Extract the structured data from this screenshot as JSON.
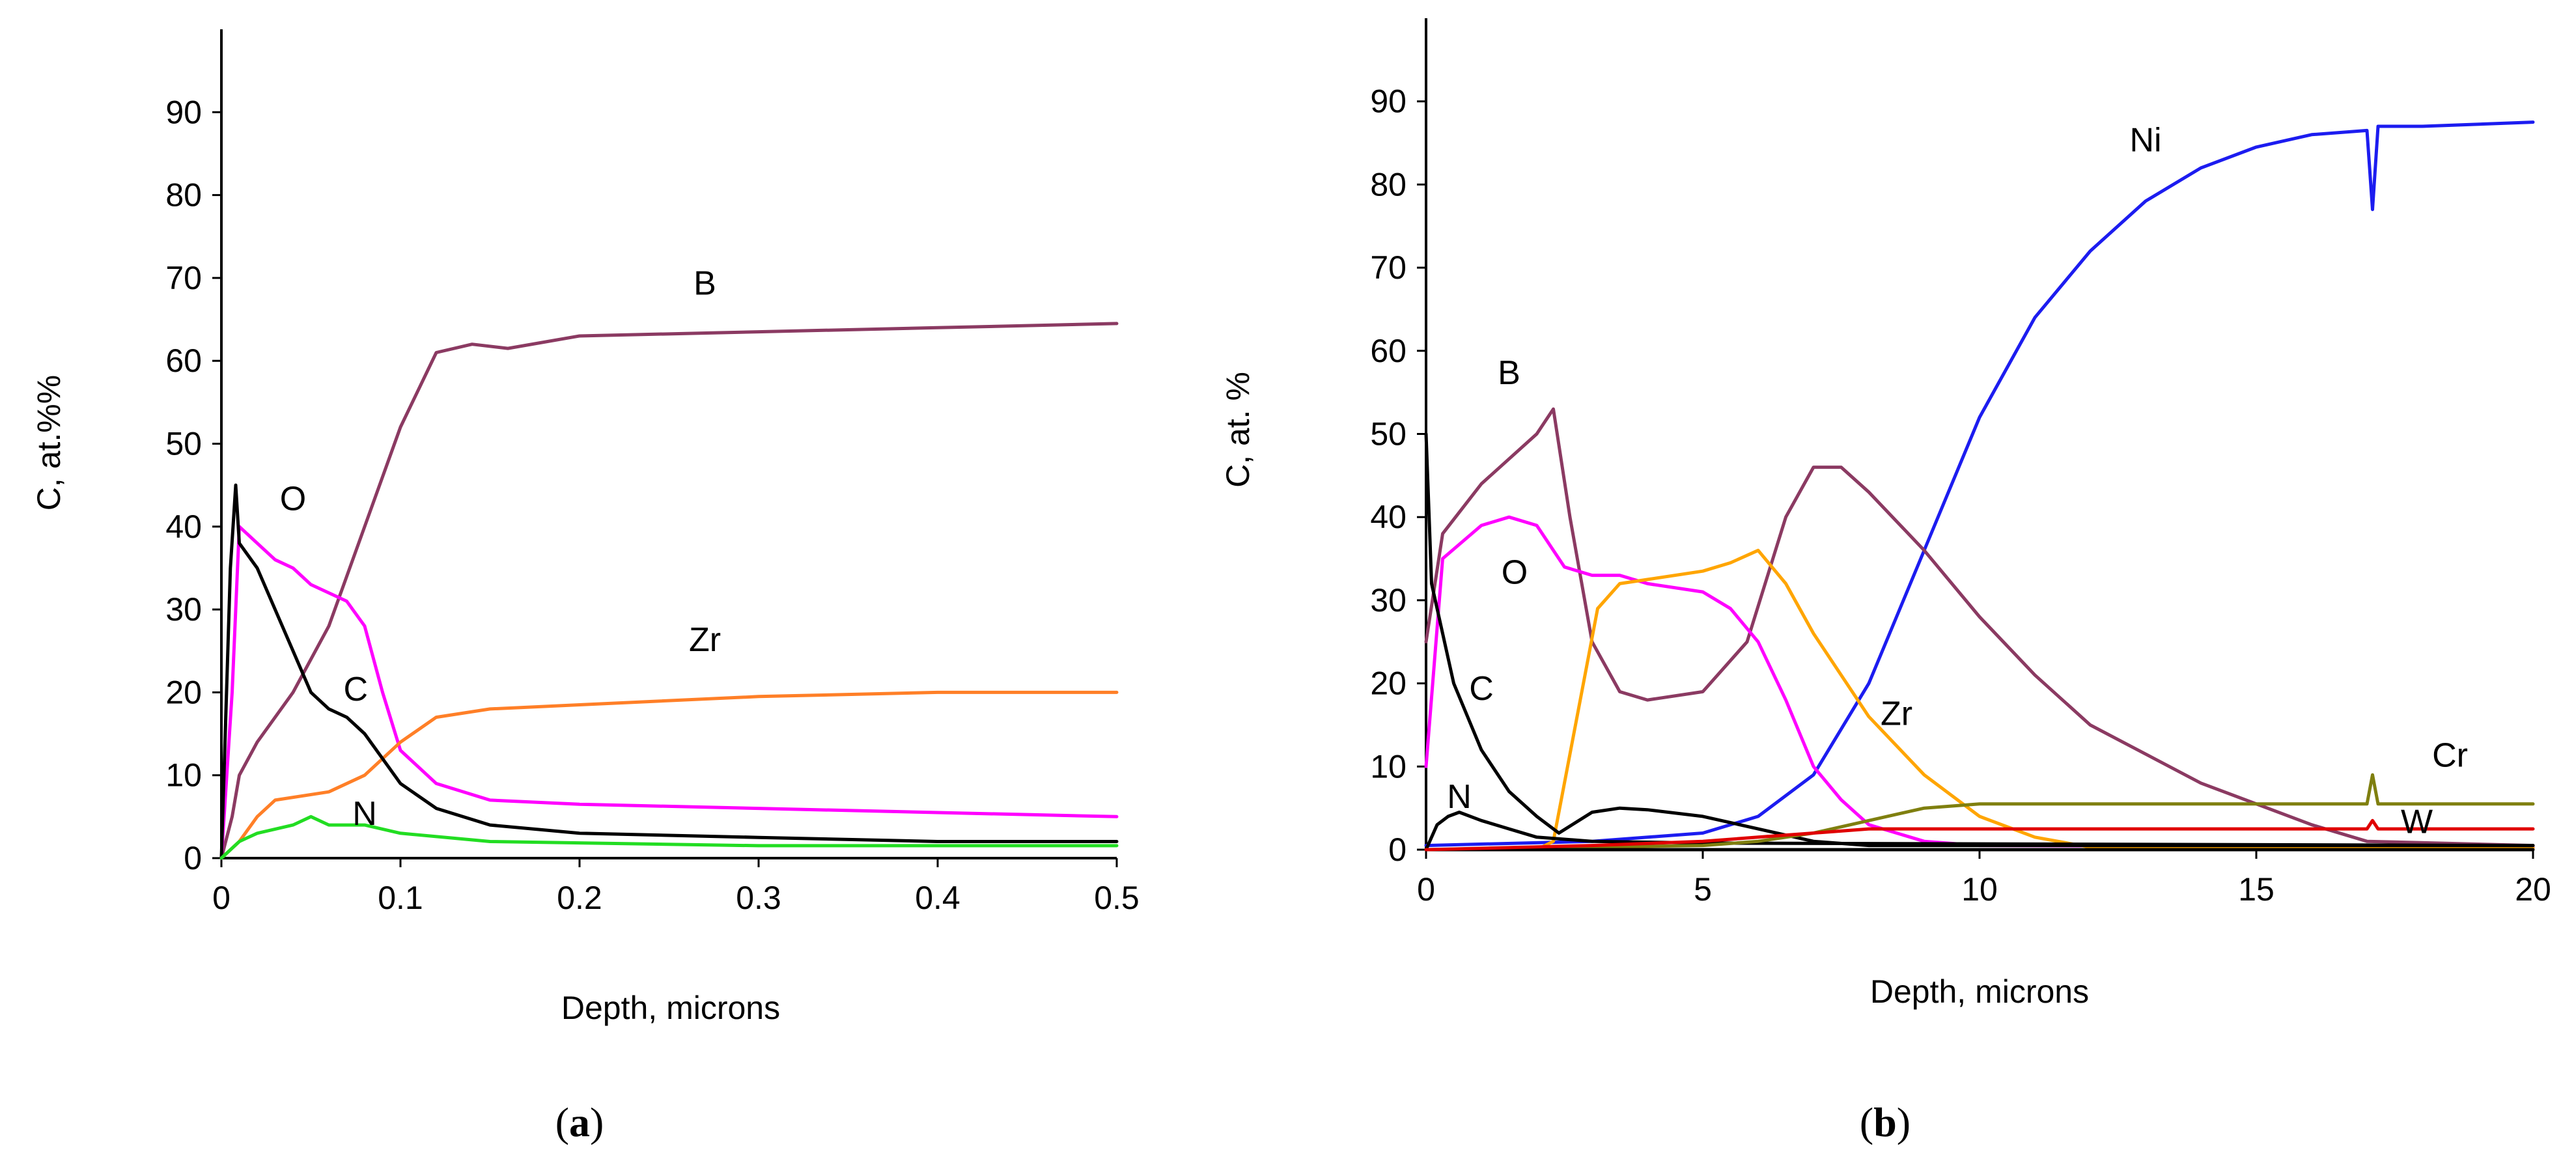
{
  "chart_data": [
    {
      "type": "line",
      "panel": "a",
      "xlabel": "Depth, microns",
      "ylabel": "C, at.%%",
      "xlim": [
        0,
        0.5
      ],
      "ylim": [
        0,
        100
      ],
      "xticks": [
        0,
        0.1,
        0.2,
        0.3,
        0.4,
        0.5
      ],
      "xtick_labels": [
        "0",
        "0.1",
        "0.2",
        "0.3",
        "0.4",
        "0.5"
      ],
      "yticks": [
        0,
        10,
        20,
        30,
        40,
        50,
        60,
        70,
        80,
        90
      ],
      "ytick_labels": [
        "0",
        "10",
        "20",
        "30",
        "40",
        "50",
        "60",
        "70",
        "80",
        "90"
      ],
      "series": [
        {
          "name": "B",
          "color": "#8B3A62",
          "label_at": [
            0.27,
            68
          ],
          "points": [
            [
              0,
              0
            ],
            [
              0.006,
              5
            ],
            [
              0.01,
              10
            ],
            [
              0.02,
              14
            ],
            [
              0.04,
              20
            ],
            [
              0.06,
              28
            ],
            [
              0.08,
              40
            ],
            [
              0.1,
              52
            ],
            [
              0.12,
              61
            ],
            [
              0.14,
              62
            ],
            [
              0.16,
              61.5
            ],
            [
              0.2,
              63
            ],
            [
              0.3,
              63.5
            ],
            [
              0.4,
              64
            ],
            [
              0.5,
              64.5
            ]
          ]
        },
        {
          "name": "O",
          "color": "#FF00FF",
          "label_at": [
            0.04,
            42
          ],
          "points": [
            [
              0,
              0
            ],
            [
              0.006,
              20
            ],
            [
              0.01,
              40
            ],
            [
              0.02,
              38
            ],
            [
              0.03,
              36
            ],
            [
              0.04,
              35
            ],
            [
              0.05,
              33
            ],
            [
              0.06,
              32
            ],
            [
              0.07,
              31
            ],
            [
              0.08,
              28
            ],
            [
              0.09,
              20
            ],
            [
              0.1,
              13
            ],
            [
              0.12,
              9
            ],
            [
              0.15,
              7
            ],
            [
              0.2,
              6.5
            ],
            [
              0.3,
              6
            ],
            [
              0.4,
              5.5
            ],
            [
              0.5,
              5
            ]
          ]
        },
        {
          "name": "Zr",
          "color": "#FF7F27",
          "label_at": [
            0.27,
            25
          ],
          "points": [
            [
              0,
              0
            ],
            [
              0.01,
              2
            ],
            [
              0.02,
              5
            ],
            [
              0.03,
              7
            ],
            [
              0.06,
              8
            ],
            [
              0.08,
              10
            ],
            [
              0.1,
              14
            ],
            [
              0.12,
              17
            ],
            [
              0.15,
              18
            ],
            [
              0.2,
              18.5
            ],
            [
              0.3,
              19.5
            ],
            [
              0.4,
              20
            ],
            [
              0.5,
              20
            ]
          ]
        },
        {
          "name": "C",
          "color": "#000000",
          "label_at": [
            0.075,
            19
          ],
          "points": [
            [
              0,
              0
            ],
            [
              0.005,
              35
            ],
            [
              0.008,
              45
            ],
            [
              0.01,
              38
            ],
            [
              0.02,
              35
            ],
            [
              0.03,
              30
            ],
            [
              0.04,
              25
            ],
            [
              0.05,
              20
            ],
            [
              0.06,
              18
            ],
            [
              0.07,
              17
            ],
            [
              0.08,
              15
            ],
            [
              0.09,
              12
            ],
            [
              0.1,
              9
            ],
            [
              0.12,
              6
            ],
            [
              0.15,
              4
            ],
            [
              0.2,
              3
            ],
            [
              0.3,
              2.5
            ],
            [
              0.4,
              2
            ],
            [
              0.5,
              2
            ]
          ]
        },
        {
          "name": "N",
          "color": "#22DD22",
          "label_at": [
            0.08,
            4
          ],
          "points": [
            [
              0,
              0
            ],
            [
              0.01,
              2
            ],
            [
              0.02,
              3
            ],
            [
              0.04,
              4
            ],
            [
              0.05,
              5
            ],
            [
              0.06,
              4
            ],
            [
              0.08,
              4
            ],
            [
              0.1,
              3
            ],
            [
              0.15,
              2
            ],
            [
              0.3,
              1.5
            ],
            [
              0.5,
              1.5
            ]
          ]
        }
      ]
    },
    {
      "type": "line",
      "panel": "b",
      "xlabel": "Depth, microns",
      "ylabel": "C, at. %",
      "xlim": [
        0,
        20
      ],
      "ylim": [
        0,
        100
      ],
      "xticks": [
        0,
        5,
        10,
        15,
        20
      ],
      "xtick_labels": [
        "0",
        "5",
        "10",
        "15",
        "20"
      ],
      "yticks": [
        0,
        10,
        20,
        30,
        40,
        50,
        60,
        70,
        80,
        90
      ],
      "ytick_labels": [
        "0",
        "10",
        "20",
        "30",
        "40",
        "50",
        "60",
        "70",
        "80",
        "90"
      ],
      "series": [
        {
          "name": "Ni",
          "color": "#1C1CF0",
          "label_at": [
            13,
            84
          ],
          "points": [
            [
              0,
              0.5
            ],
            [
              3,
              1
            ],
            [
              5,
              2
            ],
            [
              6,
              4
            ],
            [
              7,
              9
            ],
            [
              8,
              20
            ],
            [
              9,
              36
            ],
            [
              10,
              52
            ],
            [
              11,
              64
            ],
            [
              12,
              72
            ],
            [
              13,
              78
            ],
            [
              14,
              82
            ],
            [
              15,
              84.5
            ],
            [
              16,
              86
            ],
            [
              17,
              86.5
            ],
            [
              17.1,
              77
            ],
            [
              17.2,
              87
            ],
            [
              18,
              87
            ],
            [
              20,
              87.5
            ]
          ]
        },
        {
          "name": "B",
          "color": "#8B3A62",
          "label_at": [
            1.5,
            56
          ],
          "points": [
            [
              0,
              25
            ],
            [
              0.3,
              38
            ],
            [
              1,
              44
            ],
            [
              2,
              50
            ],
            [
              2.3,
              53
            ],
            [
              2.6,
              40
            ],
            [
              3,
              25
            ],
            [
              3.5,
              19
            ],
            [
              4,
              18
            ],
            [
              5,
              19
            ],
            [
              5.8,
              25
            ],
            [
              6.5,
              40
            ],
            [
              7,
              46
            ],
            [
              7.5,
              46
            ],
            [
              8,
              43
            ],
            [
              9,
              36
            ],
            [
              10,
              28
            ],
            [
              11,
              21
            ],
            [
              12,
              15
            ],
            [
              14,
              8
            ],
            [
              16,
              3
            ],
            [
              17,
              1
            ],
            [
              20,
              0.5
            ]
          ]
        },
        {
          "name": "O",
          "color": "#FF00FF",
          "label_at": [
            1.6,
            32
          ],
          "points": [
            [
              0,
              10
            ],
            [
              0.3,
              35
            ],
            [
              1,
              39
            ],
            [
              1.5,
              40
            ],
            [
              2,
              39
            ],
            [
              2.5,
              34
            ],
            [
              3,
              33
            ],
            [
              3.5,
              33
            ],
            [
              4,
              32
            ],
            [
              5,
              31
            ],
            [
              5.5,
              29
            ],
            [
              6,
              25
            ],
            [
              6.5,
              18
            ],
            [
              7,
              10
            ],
            [
              7.5,
              6
            ],
            [
              8,
              3
            ],
            [
              9,
              1
            ],
            [
              10,
              0.5
            ],
            [
              20,
              0.3
            ]
          ]
        },
        {
          "name": "Zr",
          "color": "#FFA500",
          "label_at": [
            8.5,
            15
          ],
          "points": [
            [
              0,
              0
            ],
            [
              2,
              0
            ],
            [
              2.3,
              1
            ],
            [
              2.7,
              15
            ],
            [
              3.1,
              29
            ],
            [
              3.5,
              32
            ],
            [
              4,
              32.5
            ],
            [
              5,
              33.5
            ],
            [
              5.5,
              34.5
            ],
            [
              6,
              36
            ],
            [
              6.5,
              32
            ],
            [
              7,
              26
            ],
            [
              8,
              16
            ],
            [
              9,
              9
            ],
            [
              10,
              4
            ],
            [
              11,
              1.5
            ],
            [
              12,
              0.3
            ],
            [
              20,
              0.2
            ]
          ]
        },
        {
          "name": "C",
          "color": "#000000",
          "label_at": [
            1,
            18
          ],
          "points": [
            [
              0,
              50
            ],
            [
              0.1,
              32
            ],
            [
              0.5,
              20
            ],
            [
              1,
              12
            ],
            [
              1.5,
              7
            ],
            [
              2,
              4
            ],
            [
              2.4,
              2
            ],
            [
              3,
              4.5
            ],
            [
              3.5,
              5
            ],
            [
              4,
              4.8
            ],
            [
              5,
              4
            ],
            [
              6,
              2.5
            ],
            [
              7,
              1
            ],
            [
              8,
              0.5
            ],
            [
              20,
              0.5
            ]
          ]
        },
        {
          "name": "N",
          "color": "#000000",
          "label_at": [
            0.6,
            5
          ],
          "points": [
            [
              0,
              0
            ],
            [
              0.2,
              3
            ],
            [
              0.4,
              4
            ],
            [
              0.6,
              4.5
            ],
            [
              1,
              3.5
            ],
            [
              1.5,
              2.5
            ],
            [
              2,
              1.5
            ],
            [
              3,
              1
            ],
            [
              5,
              0.8
            ],
            [
              20,
              0.5
            ]
          ]
        },
        {
          "name": "Cr",
          "color": "#7F7F0F",
          "label_at": [
            18.5,
            10
          ],
          "points": [
            [
              0,
              0
            ],
            [
              5,
              0.5
            ],
            [
              6,
              1
            ],
            [
              7,
              2
            ],
            [
              8,
              3.5
            ],
            [
              9,
              5
            ],
            [
              10,
              5.5
            ],
            [
              15,
              5.5
            ],
            [
              17,
              5.5
            ],
            [
              17.1,
              9
            ],
            [
              17.2,
              5.5
            ],
            [
              20,
              5.5
            ]
          ]
        },
        {
          "name": "W",
          "color": "#000000",
          "label_at": [
            17.9,
            2
          ],
          "points": [
            [
              0,
              0
            ],
            [
              20,
              0
            ]
          ]
        },
        {
          "name": "",
          "color": "#E00000",
          "label_at": null,
          "points": [
            [
              0,
              0
            ],
            [
              3,
              0.5
            ],
            [
              5,
              1
            ],
            [
              6,
              1.5
            ],
            [
              7,
              2
            ],
            [
              8,
              2.5
            ],
            [
              10,
              2.5
            ],
            [
              17,
              2.5
            ],
            [
              17.1,
              3.5
            ],
            [
              17.2,
              2.5
            ],
            [
              20,
              2.5
            ]
          ]
        }
      ]
    }
  ],
  "panel_tags": [
    {
      "open": "(",
      "letter": "a",
      "close": ")"
    },
    {
      "open": "(",
      "letter": "b",
      "close": ")"
    }
  ]
}
